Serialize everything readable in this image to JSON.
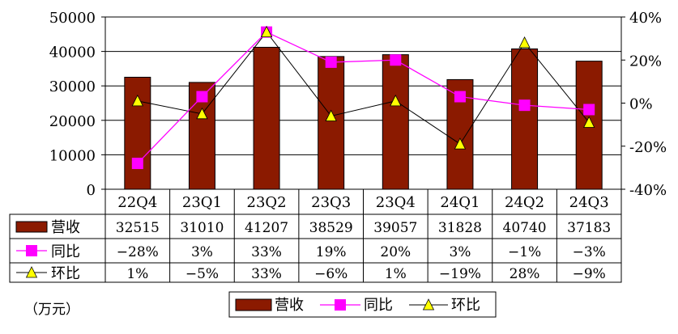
{
  "unit_label": "（万元）",
  "colors": {
    "bar": "#8B1A00",
    "yoy": "#FF00FF",
    "qoq_marker": "#FFFF00",
    "qoq_line": "#000000"
  },
  "chart_data": {
    "type": "bar",
    "categories": [
      "22Q4",
      "23Q1",
      "23Q2",
      "23Q3",
      "23Q4",
      "24Q1",
      "24Q2",
      "24Q3"
    ],
    "ylim": [
      0,
      50000
    ],
    "y_ticks": [
      "0",
      "10000",
      "20000",
      "30000",
      "40000",
      "50000"
    ],
    "y2lim": [
      -40,
      40
    ],
    "y2_ticks": [
      "-40%",
      "-20%",
      "0%",
      "20%",
      "40%"
    ],
    "grid": true,
    "legend_position": "bottom",
    "series": [
      {
        "name": "营收",
        "type": "bar",
        "axis": "left",
        "values": [
          32515,
          31010,
          41207,
          38529,
          39057,
          31828,
          40740,
          37183
        ],
        "labels": [
          "32515",
          "31010",
          "41207",
          "38529",
          "39057",
          "31828",
          "40740",
          "37183"
        ]
      },
      {
        "name": "同比",
        "type": "line",
        "axis": "right",
        "marker": "square",
        "values": [
          -28,
          3,
          33,
          19,
          20,
          3,
          -1,
          -3
        ],
        "labels": [
          "-28%",
          "3%",
          "33%",
          "19%",
          "20%",
          "3%",
          "-1%",
          "-3%"
        ]
      },
      {
        "name": "环比",
        "type": "line",
        "axis": "right",
        "marker": "triangle",
        "values": [
          1,
          -5,
          33,
          -6,
          1,
          -19,
          28,
          -9
        ],
        "labels": [
          "1%",
          "-5%",
          "33%",
          "-6%",
          "1%",
          "-19%",
          "28%",
          "-9%"
        ]
      }
    ]
  }
}
